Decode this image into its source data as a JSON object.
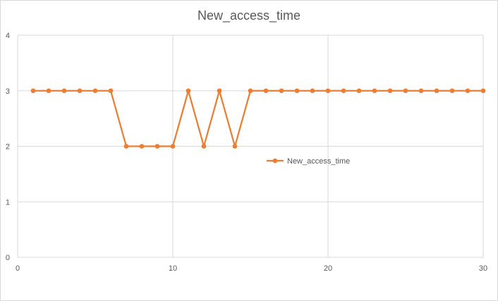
{
  "chart_data": {
    "type": "scatter",
    "title": "New_access_time",
    "xlabel": "",
    "ylabel": "",
    "xlim": [
      0,
      30
    ],
    "ylim": [
      0,
      4
    ],
    "x_ticks": [
      0,
      10,
      20,
      30
    ],
    "y_ticks": [
      0,
      1,
      2,
      3,
      4
    ],
    "grid": true,
    "legend_position": "right-middle",
    "series": [
      {
        "name": "New_access_time",
        "color": "#ED7D31",
        "x": [
          1,
          2,
          3,
          4,
          5,
          6,
          7,
          8,
          9,
          10,
          11,
          12,
          13,
          14,
          15,
          16,
          17,
          18,
          19,
          20,
          21,
          22,
          23,
          24,
          25,
          26,
          27,
          28,
          29,
          30
        ],
        "y": [
          3,
          3,
          3,
          3,
          3,
          3,
          2,
          2,
          2,
          2,
          3,
          2,
          3,
          2,
          3,
          3,
          3,
          3,
          3,
          3,
          3,
          3,
          3,
          3,
          3,
          3,
          3,
          3,
          3,
          3
        ]
      }
    ]
  }
}
